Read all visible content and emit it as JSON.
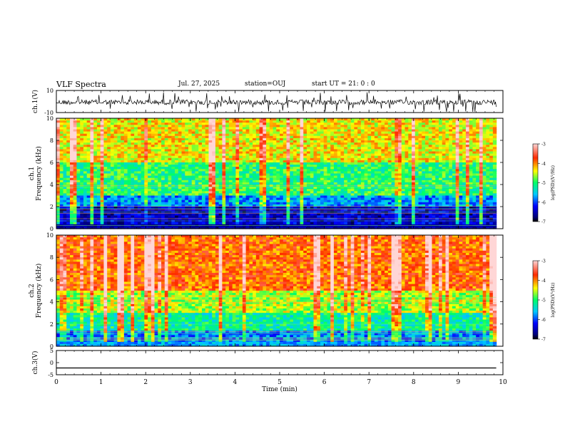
{
  "header": {
    "title": "VLF Spectra",
    "date": "Jul. 27, 2025",
    "station": "station=OUJ",
    "start": "start UT =  21: 0 : 0"
  },
  "chart_data": [
    {
      "type": "line",
      "panel": "ch1-waveform",
      "ylabel": "ch.1(V)",
      "ylim": [
        -10,
        10
      ],
      "yticks": [
        "10",
        "-10"
      ],
      "xlim": [
        0,
        10
      ]
    },
    {
      "type": "heatmap",
      "panel": "ch1-spectrogram",
      "ylabel_line1": "ch.1",
      "ylabel_line2": "Frequency (kHz)",
      "ylim": [
        0,
        10
      ],
      "yticks": [
        "0",
        "2",
        "4",
        "6",
        "8",
        "10"
      ],
      "xlim": [
        0,
        9.85
      ],
      "colorbar": {
        "label": "log(PSD)(V²/Hz)",
        "min": -7,
        "max": -3,
        "ticks": [
          "-3",
          "-4",
          "-5",
          "-6",
          "-7"
        ]
      }
    },
    {
      "type": "heatmap",
      "panel": "ch2-spectrogram",
      "ylabel_line1": "ch.2",
      "ylabel_line2": "Frequency (kHz)",
      "ylim": [
        0,
        10
      ],
      "yticks": [
        "0",
        "2",
        "4",
        "6",
        "8",
        "10"
      ],
      "xlim": [
        0,
        9.85
      ],
      "colorbar": {
        "label": "log(PSD)(V²/Hz)",
        "min": -7,
        "max": -3,
        "ticks": [
          "-3",
          "-4",
          "-5",
          "-6",
          "-7"
        ]
      }
    },
    {
      "type": "line",
      "panel": "ch3-waveform",
      "ylabel": "ch.3(V)",
      "ylim": [
        -5,
        5
      ],
      "yticks": [
        "5",
        "0",
        "-5"
      ],
      "xlim": [
        0,
        10
      ],
      "x": [
        0,
        9.85
      ],
      "y": [
        -2.2,
        -2.2
      ]
    }
  ],
  "xaxis": {
    "label": "Time (min)",
    "ticks": [
      "0",
      "1",
      "2",
      "3",
      "4",
      "5",
      "6",
      "7",
      "8",
      "9",
      "10"
    ]
  }
}
